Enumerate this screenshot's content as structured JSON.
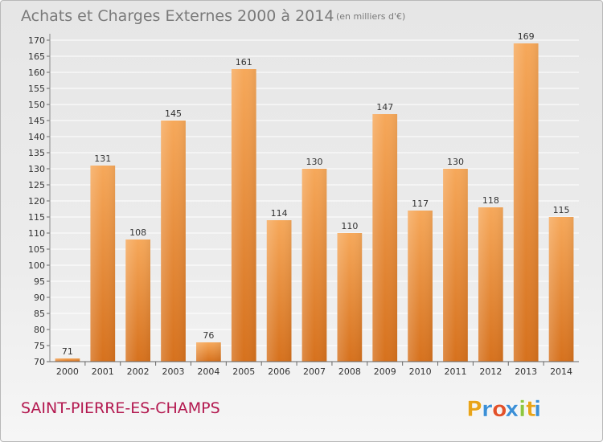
{
  "title": "Achats et Charges Externes 2000 à 2014",
  "unit": "(en milliers d'€)",
  "commune": "SAINT-PIERRE-ES-CHAMPS",
  "logo": {
    "letters": [
      "P",
      "r",
      "o",
      "x",
      "i",
      "t",
      "i"
    ],
    "colors": [
      "#e8a41a",
      "#3b8fd6",
      "#e2512a",
      "#3b8fd6",
      "#8dc63f",
      "#e8a41a",
      "#3b8fd6"
    ]
  },
  "colors": {
    "bar_top": "#f6a85a",
    "bar_bottom": "#d6711d",
    "grid": "#ffffff",
    "commune": "#b3184f"
  },
  "chart_data": {
    "type": "bar",
    "categories": [
      "2000",
      "2001",
      "2002",
      "2003",
      "2004",
      "2005",
      "2006",
      "2007",
      "2008",
      "2009",
      "2010",
      "2011",
      "2012",
      "2013",
      "2014"
    ],
    "values": [
      71,
      131,
      108,
      145,
      76,
      161,
      114,
      130,
      110,
      147,
      117,
      130,
      118,
      169,
      115
    ],
    "ylim": [
      70,
      170
    ],
    "ytick_step": 5,
    "grid": true,
    "title": "Achats et Charges Externes 2000 à 2014",
    "xlabel": "",
    "ylabel": ""
  }
}
